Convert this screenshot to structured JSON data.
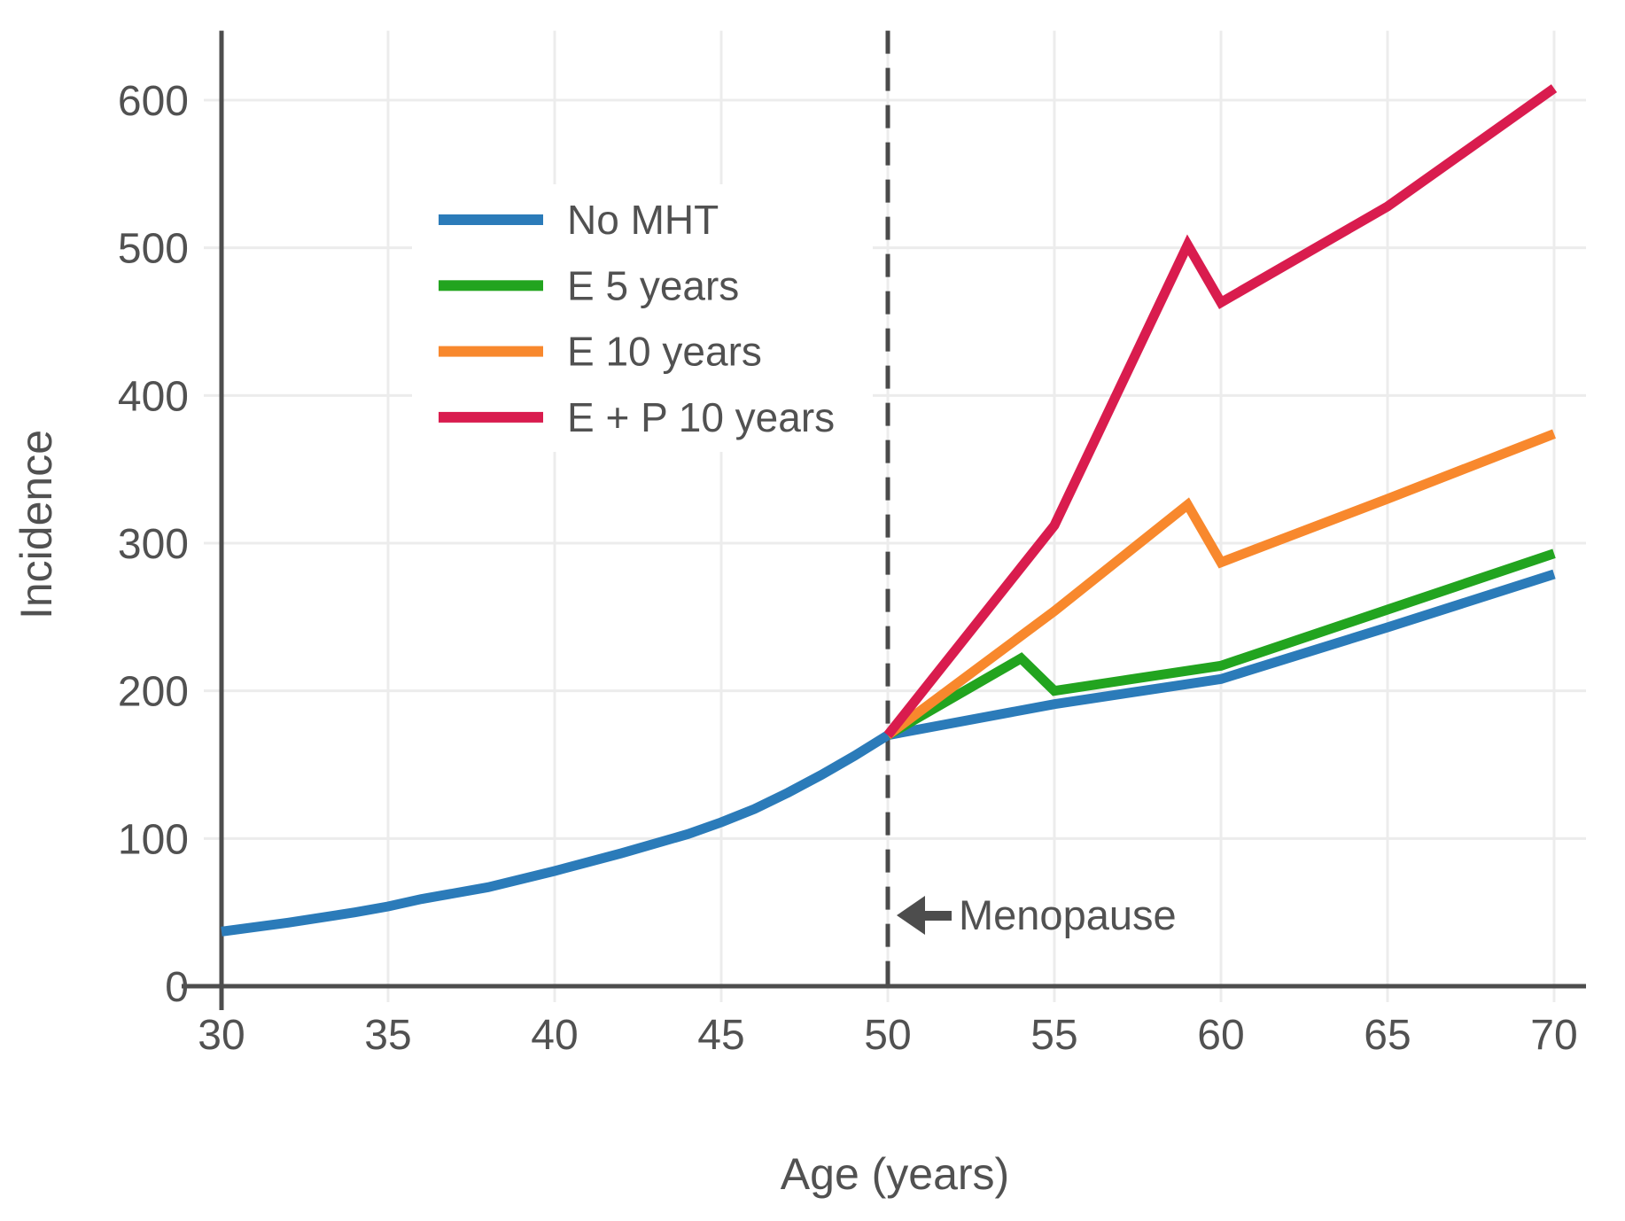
{
  "colors": {
    "background": "#ffffff",
    "grid": "#ececec",
    "axis": "#4d4d4d",
    "text": "#515151",
    "dashed_line": "#4a4a4a",
    "blue": "#2b7bb9",
    "green": "#22a41f",
    "orange": "#f8882d",
    "red": "#d91c4e"
  },
  "chart_data": {
    "type": "line",
    "title": "",
    "xlabel": "Age (years)",
    "ylabel": "Incidence",
    "x_ticks": [
      30,
      35,
      40,
      45,
      50,
      55,
      60,
      65,
      70
    ],
    "y_ticks": [
      0,
      100,
      200,
      300,
      400,
      500,
      600
    ],
    "xlim": [
      30,
      71
    ],
    "ylim": [
      0,
      647
    ],
    "grid": true,
    "legend_position": "upper-left-inside",
    "series": [
      {
        "name": "No MHT",
        "color": "#2b7bb9",
        "points": [
          [
            30,
            37
          ],
          [
            32,
            43
          ],
          [
            34,
            50
          ],
          [
            35,
            54
          ],
          [
            36,
            59
          ],
          [
            38,
            67
          ],
          [
            40,
            78
          ],
          [
            42,
            90
          ],
          [
            44,
            103
          ],
          [
            45,
            111
          ],
          [
            46,
            120
          ],
          [
            47,
            131
          ],
          [
            48,
            143
          ],
          [
            49,
            156
          ],
          [
            50,
            170
          ],
          [
            55,
            191
          ],
          [
            60,
            208
          ],
          [
            65,
            243
          ],
          [
            70,
            279
          ]
        ]
      },
      {
        "name": "E 5 years",
        "color": "#22a41f",
        "points": [
          [
            50,
            170
          ],
          [
            54,
            222
          ],
          [
            55,
            200
          ],
          [
            60,
            217
          ],
          [
            65,
            255
          ],
          [
            70,
            293
          ]
        ]
      },
      {
        "name": "E 10 years",
        "color": "#f8882d",
        "points": [
          [
            50,
            170
          ],
          [
            55,
            254
          ],
          [
            59,
            326
          ],
          [
            60,
            287
          ],
          [
            65,
            330
          ],
          [
            70,
            374
          ]
        ]
      },
      {
        "name": "E + P 10 years",
        "color": "#d91c4e",
        "points": [
          [
            50,
            170
          ],
          [
            55,
            312
          ],
          [
            59,
            502
          ],
          [
            60,
            463
          ],
          [
            65,
            528
          ],
          [
            70,
            608
          ]
        ]
      }
    ],
    "annotation": {
      "label": "Menopause",
      "x": 50,
      "arrow": "left"
    }
  }
}
